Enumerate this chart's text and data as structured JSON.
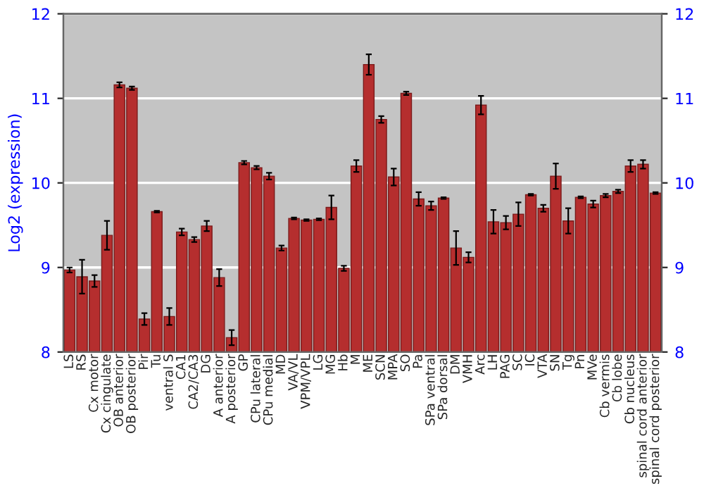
{
  "chart_data": {
    "type": "bar",
    "ylabel": "Log2 (expression)",
    "categories": [
      "LS",
      "RS",
      "Cx motor",
      "Cx cingulate",
      "OB anterior",
      "OB posterior",
      "Pir",
      "Tu",
      "ventral S",
      "CA1",
      "CA2/CA3",
      "DG",
      "A anterior",
      "A posterior",
      "GP",
      "CPu lateral",
      "CPu medial",
      "MD",
      "VA/VL",
      "VPM/VPL",
      "LG",
      "MG",
      "Hb",
      "M",
      "ME",
      "SCN",
      "MPA",
      "SO",
      "Pa",
      "SPa ventral",
      "SPa dorsal",
      "DM",
      "VMH",
      "Arc",
      "LH",
      "PAG",
      "SC",
      "IC",
      "VTA",
      "SN",
      "Tg",
      "Pn",
      "MVe",
      "Cb vermis",
      "Cb lobe",
      "Cb nucleus",
      "spinal cord anterior",
      "spinal cord posterior"
    ],
    "values": [
      8.97,
      8.89,
      8.84,
      9.38,
      11.16,
      11.12,
      8.39,
      9.66,
      8.42,
      9.42,
      9.33,
      9.49,
      8.88,
      8.17,
      10.24,
      10.18,
      10.08,
      9.23,
      9.58,
      9.56,
      9.57,
      9.71,
      8.99,
      10.2,
      11.4,
      10.75,
      10.07,
      11.06,
      9.81,
      9.73,
      9.82,
      9.23,
      9.12,
      10.92,
      9.54,
      9.53,
      9.63,
      9.86,
      9.7,
      10.08,
      9.55,
      9.83,
      9.75,
      9.85,
      9.9,
      10.2,
      10.22,
      9.88
    ],
    "errors": [
      0.03,
      0.2,
      0.07,
      0.17,
      0.03,
      0.02,
      0.07,
      0.01,
      0.1,
      0.04,
      0.03,
      0.06,
      0.1,
      0.09,
      0.02,
      0.02,
      0.04,
      0.03,
      0.01,
      0.01,
      0.01,
      0.14,
      0.03,
      0.07,
      0.12,
      0.04,
      0.1,
      0.02,
      0.08,
      0.05,
      0.01,
      0.2,
      0.06,
      0.11,
      0.14,
      0.08,
      0.14,
      0.01,
      0.04,
      0.15,
      0.15,
      0.01,
      0.04,
      0.02,
      0.02,
      0.07,
      0.05,
      0.01
    ],
    "color": "#b52e2e",
    "ylim": [
      8,
      12
    ],
    "yticks": [
      8,
      9,
      10,
      11,
      12
    ],
    "y2lim": [
      8,
      12
    ],
    "y2ticks": [
      8,
      9,
      10,
      11,
      12
    ],
    "grid": "y",
    "legend": false
  }
}
